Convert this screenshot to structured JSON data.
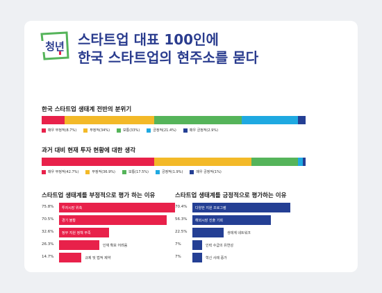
{
  "header": {
    "logo_text": "청년",
    "title_line1": "스타트업 대표 100인에",
    "title_line2": "한국 스타트업의 현주소를 묻다"
  },
  "colors": {
    "very_negative": "#e8214a",
    "negative": "#f3b928",
    "neutral": "#55b45a",
    "positive": "#1fa9e1",
    "very_positive": "#243f94"
  },
  "chart_data": [
    {
      "type": "bar",
      "orientation": "horizontal-stacked",
      "title": "한국 스타트업 생태계 전반의 분위기",
      "series": [
        {
          "name": "매우 부정적(8.7%)",
          "value": 8.7
        },
        {
          "name": "부정적(34%)",
          "value": 34
        },
        {
          "name": "보통(33%)",
          "value": 33
        },
        {
          "name": "긍정적(21.4%)",
          "value": 21.4
        },
        {
          "name": "매우 긍정적(2.9%)",
          "value": 2.9
        }
      ]
    },
    {
      "type": "bar",
      "orientation": "horizontal-stacked",
      "title": "과거 대비 현재 투자 현황에 대한 생각",
      "series": [
        {
          "name": "매우 부정적(42.7%)",
          "value": 42.7
        },
        {
          "name": "부정적(36.9%)",
          "value": 36.9
        },
        {
          "name": "보통(17.5%)",
          "value": 17.5
        },
        {
          "name": "긍정적(1.9%)",
          "value": 1.9
        },
        {
          "name": "매우 긍정적(1%)",
          "value": 1
        }
      ]
    },
    {
      "type": "bar",
      "orientation": "horizontal",
      "title": "스타트업 생태계를 부정적으로 평가 하는 이유",
      "categories": [
        "투자시장 위축",
        "경기 불황",
        "정부 지원 정책 부족",
        "인재 확보 어려움",
        "규제 및 법적 제약"
      ],
      "values": [
        75.8,
        70.5,
        32.6,
        26.3,
        14.7
      ],
      "value_labels": [
        "75.8%",
        "70.5%",
        "32.6%",
        "26.3%",
        "14.7%"
      ],
      "xlim": [
        0,
        100
      ]
    },
    {
      "type": "bar",
      "orientation": "horizontal",
      "title": "스타트업 생태계를 긍정적으로 평가하는 이유",
      "categories": [
        "다양한 지원 프로그램",
        "해외시장 진출 기회",
        "생태계 네트워크",
        "인력 수급의 유연성",
        "혁신 사례 증가"
      ],
      "values": [
        70.4,
        56.3,
        22.5,
        7,
        7
      ],
      "value_labels": [
        "70.4%",
        "56.3%",
        "22.5%",
        "7%",
        "7%"
      ],
      "xlim": [
        0,
        100
      ]
    }
  ]
}
